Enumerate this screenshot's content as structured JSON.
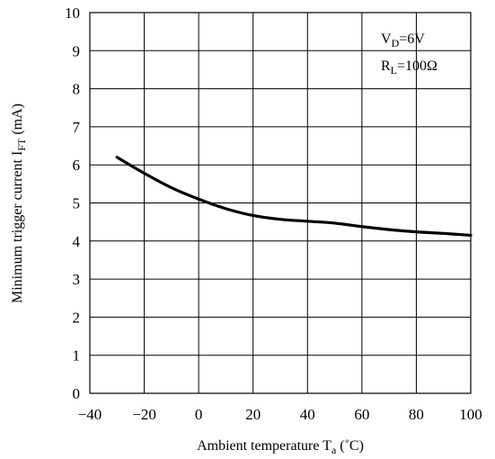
{
  "chart_data": {
    "type": "line",
    "xlabel": "Ambient temperature T",
    "xlabel_sub": "a",
    "xlabel_unit": " (˚C)",
    "ylabel": "Minimum trigger current I",
    "ylabel_sub": "FT",
    "ylabel_unit": " (mA)",
    "xlim": [
      -40,
      100
    ],
    "ylim": [
      0,
      10
    ],
    "x_ticks": [
      -40,
      -20,
      0,
      20,
      40,
      60,
      80,
      100
    ],
    "y_ticks": [
      0,
      1,
      2,
      3,
      4,
      5,
      6,
      7,
      8,
      9,
      10
    ],
    "x_tick_labels": [
      "−40",
      "−20",
      "0",
      "20",
      "40",
      "60",
      "80",
      "100"
    ],
    "y_tick_labels": [
      "0",
      "1",
      "2",
      "3",
      "4",
      "5",
      "6",
      "7",
      "8",
      "9",
      "10"
    ],
    "grid": true,
    "legend": "none",
    "annotations": [
      {
        "main": "V",
        "sub": "D",
        "rest": "=6V"
      },
      {
        "main": "R",
        "sub": "L",
        "rest": "=100Ω"
      }
    ],
    "series": [
      {
        "x": [
          -30,
          -20,
          -10,
          0,
          10,
          20,
          30,
          40,
          50,
          60,
          70,
          80,
          90,
          100
        ],
        "y": [
          6.2,
          5.78,
          5.4,
          5.1,
          4.85,
          4.67,
          4.57,
          4.52,
          4.47,
          4.38,
          4.3,
          4.24,
          4.2,
          4.15
        ]
      }
    ]
  }
}
